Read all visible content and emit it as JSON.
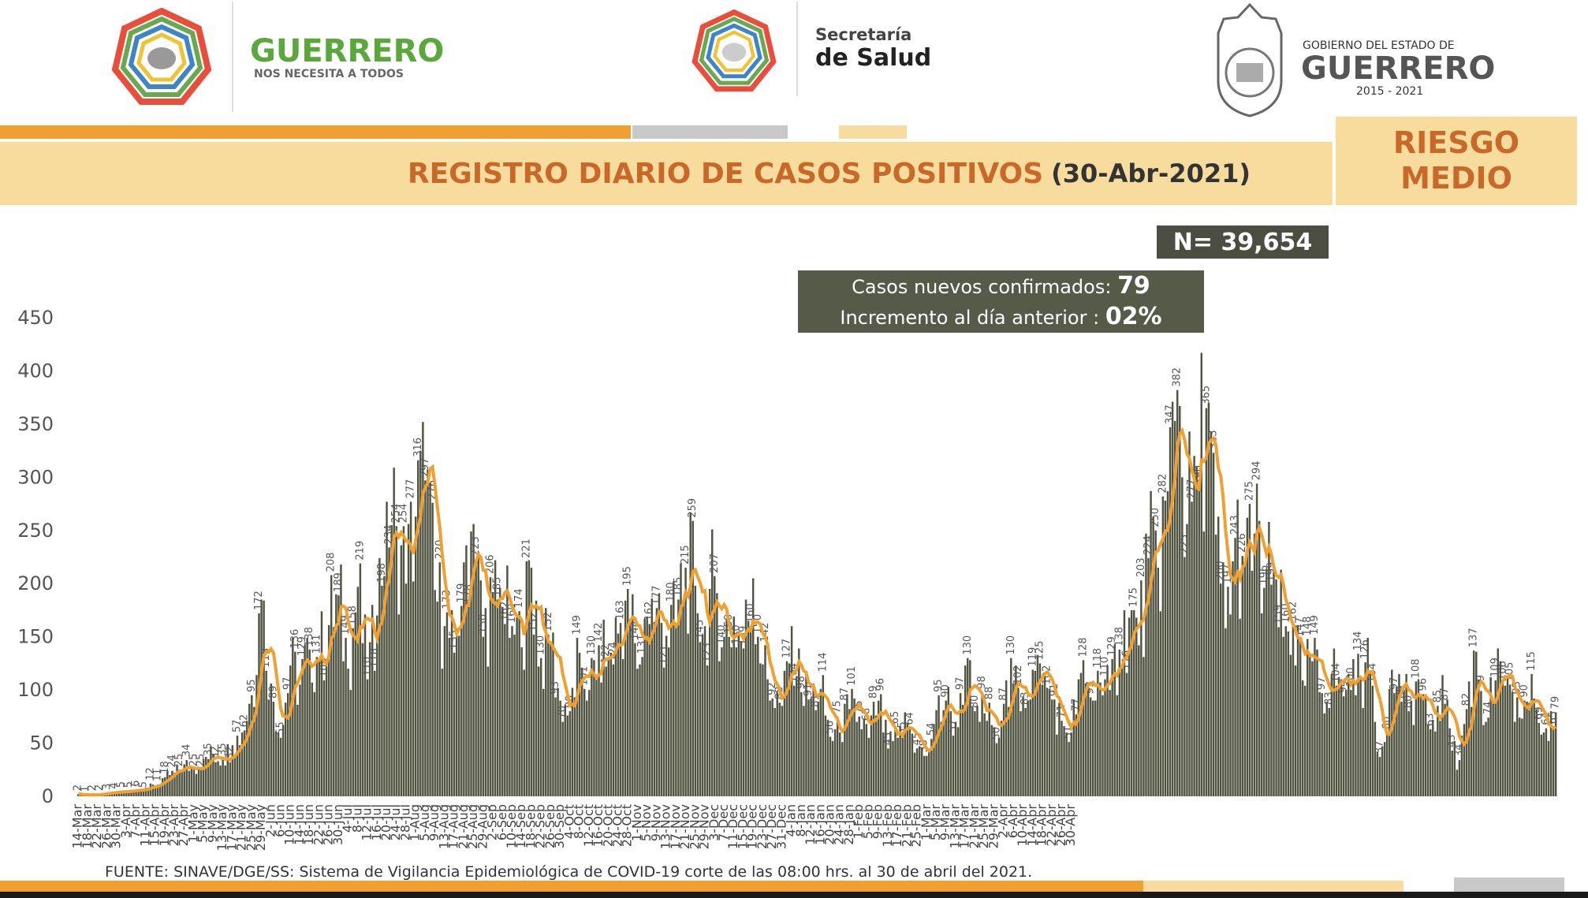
{
  "header": {
    "logo1_title": "GUERRERO",
    "logo1_subtitle": "NOS NECESITA A TODOS",
    "logo2_line1": "Secretaría",
    "logo2_line2": "de Salud",
    "logo3_line1": "GOBIERNO DEL ESTADO DE",
    "logo3_line2": "GUERRERO",
    "logo3_line3": "2015 - 2021",
    "title": "REGISTRO DIARIO DE CASOS POSITIVOS",
    "date": "(30-Abr-2021)",
    "risk_line1": "RIESGO",
    "risk_line2": "MEDIO"
  },
  "stats": {
    "total": "N= 39,654",
    "new_cases_label": "Casos nuevos confirmados:",
    "new_cases_value": "79",
    "increment_label": "Incremento al día anterior :",
    "increment_value": "02%"
  },
  "source": "FUENTE: SINAVE/DGE/SS: Sistema de Vigilancia Epidemiológica de COVID-19 corte de las 08:00 hrs. al 30 de abril del 2021.",
  "colors": {
    "bar": "#4f5340",
    "line": "#f0a030",
    "accent": "#c8692a",
    "band": "#f7dc9e"
  },
  "chart_data": {
    "type": "bar",
    "title": "REGISTRO DIARIO DE CASOS POSITIVOS",
    "ylim": [
      0,
      450
    ],
    "yticks": [
      0,
      50,
      100,
      150,
      200,
      250,
      300,
      350,
      400,
      450
    ],
    "start_date": "2020-03-14",
    "x_tick_labels": [
      "14-Mar",
      "18-Mar",
      "22-Mar",
      "26-Mar",
      "30-Mar",
      "3-Apr",
      "7-Apr",
      "11-Apr",
      "15-Apr",
      "19-Apr",
      "23-Apr",
      "27-Apr",
      "1-May",
      "5-May",
      "9-May",
      "13-May",
      "17-May",
      "21-May",
      "25-May",
      "29-May",
      "2-Jun",
      "6-Jun",
      "10-Jun",
      "14-Jun",
      "18-Jun",
      "22-Jun",
      "26-Jun",
      "30-Jun",
      "4-Jul",
      "8-Jul",
      "12-Jul",
      "16-Jul",
      "20-Jul",
      "24-Jul",
      "28-Jul",
      "1-Aug",
      "5-Aug",
      "9-Aug",
      "13-Aug",
      "17-Aug",
      "21-Aug",
      "25-Aug",
      "29-Aug",
      "2-Sep",
      "6-Sep",
      "10-Sep",
      "14-Sep",
      "18-Sep",
      "22-Sep",
      "26-Sep",
      "30-Sep",
      "4-Oct",
      "8-Oct",
      "12-Oct",
      "16-Oct",
      "20-Oct",
      "24-Oct",
      "28-Oct",
      "1-Nov",
      "5-Nov",
      "9-Nov",
      "13-Nov",
      "17-Nov",
      "21-Nov",
      "25-Nov",
      "29-Nov",
      "3-Dec",
      "7-Dec",
      "11-Dec",
      "15-Dec",
      "19-Dec",
      "23-Dec",
      "27-Dec",
      "31-Dec",
      "4-Jan",
      "8-Jan",
      "12-Jan",
      "16-Jan",
      "20-Jan",
      "24-Jan",
      "28-Jan",
      "1-Feb",
      "5-Feb",
      "9-Feb",
      "13-Feb",
      "17-Feb",
      "21-Feb",
      "25-Feb",
      "1-Mar",
      "5-Mar",
      "9-Mar",
      "13-Mar",
      "17-Mar",
      "21-Mar",
      "25-Mar",
      "29-Mar",
      "2-Apr",
      "6-Apr",
      "10-Apr",
      "14-Apr",
      "18-Apr",
      "22-Apr",
      "26-Apr",
      "30-Apr"
    ],
    "anchors": [
      [
        0,
        2
      ],
      [
        4,
        1
      ],
      [
        8,
        2
      ],
      [
        12,
        3
      ],
      [
        16,
        4
      ],
      [
        20,
        5
      ],
      [
        24,
        6
      ],
      [
        28,
        8
      ],
      [
        32,
        10
      ],
      [
        36,
        18
      ],
      [
        40,
        22
      ],
      [
        44,
        30
      ],
      [
        48,
        25
      ],
      [
        52,
        35
      ],
      [
        56,
        40
      ],
      [
        60,
        35
      ],
      [
        64,
        48
      ],
      [
        68,
        60
      ],
      [
        72,
        95
      ],
      [
        76,
        185
      ],
      [
        80,
        106
      ],
      [
        84,
        55
      ],
      [
        88,
        123
      ],
      [
        92,
        105
      ],
      [
        96,
        138
      ],
      [
        100,
        130
      ],
      [
        104,
        161
      ],
      [
        108,
        189
      ],
      [
        112,
        120
      ],
      [
        116,
        197
      ],
      [
        120,
        110
      ],
      [
        124,
        170
      ],
      [
        128,
        277
      ],
      [
        132,
        254
      ],
      [
        136,
        200
      ],
      [
        140,
        263
      ],
      [
        144,
        297
      ],
      [
        148,
        194
      ],
      [
        152,
        160
      ],
      [
        156,
        135
      ],
      [
        160,
        220
      ],
      [
        164,
        256
      ],
      [
        168,
        150
      ],
      [
        172,
        192
      ],
      [
        176,
        178
      ],
      [
        180,
        160
      ],
      [
        184,
        140
      ],
      [
        188,
        215
      ],
      [
        192,
        130
      ],
      [
        196,
        145
      ],
      [
        200,
        90
      ],
      [
        204,
        80
      ],
      [
        208,
        135
      ],
      [
        212,
        100
      ],
      [
        216,
        142
      ],
      [
        220,
        130
      ],
      [
        224,
        153
      ],
      [
        228,
        195
      ],
      [
        232,
        120
      ],
      [
        236,
        169
      ],
      [
        240,
        177
      ],
      [
        244,
        151
      ],
      [
        248,
        163
      ],
      [
        252,
        215
      ],
      [
        256,
        198
      ],
      [
        260,
        160
      ],
      [
        264,
        207
      ],
      [
        268,
        150
      ],
      [
        272,
        169
      ],
      [
        276,
        139
      ],
      [
        280,
        205
      ],
      [
        284,
        124
      ],
      [
        288,
        92
      ],
      [
        292,
        85
      ],
      [
        296,
        160
      ],
      [
        300,
        98
      ],
      [
        304,
        92
      ],
      [
        308,
        101
      ],
      [
        312,
        56
      ],
      [
        316,
        60
      ],
      [
        320,
        82
      ],
      [
        324,
        75
      ],
      [
        328,
        55
      ],
      [
        332,
        90
      ],
      [
        336,
        45
      ],
      [
        340,
        55
      ],
      [
        344,
        69
      ],
      [
        348,
        45
      ],
      [
        352,
        38
      ],
      [
        356,
        81
      ],
      [
        360,
        90
      ],
      [
        364,
        70
      ],
      [
        368,
        123
      ],
      [
        372,
        80
      ],
      [
        376,
        78
      ],
      [
        380,
        65
      ],
      [
        384,
        87
      ],
      [
        388,
        106
      ],
      [
        392,
        94
      ],
      [
        396,
        119
      ],
      [
        400,
        105
      ],
      [
        404,
        91
      ],
      [
        408,
        71
      ],
      [
        412,
        60
      ],
      [
        416,
        116
      ],
      [
        420,
        93
      ],
      [
        424,
        107
      ],
      [
        428,
        100
      ],
      [
        432,
        138
      ],
      [
        436,
        168
      ],
      [
        440,
        142
      ],
      [
        444,
        224
      ],
      [
        448,
        215
      ],
      [
        452,
        287
      ],
      [
        456,
        382
      ],
      [
        460,
        256
      ],
      [
        464,
        310
      ],
      [
        468,
        365
      ],
      [
        472,
        246
      ],
      [
        476,
        158
      ],
      [
        480,
        243
      ],
      [
        484,
        220
      ],
      [
        488,
        247
      ],
      [
        492,
        196
      ],
      [
        496,
        211
      ],
      [
        500,
        150
      ],
      [
        504,
        162
      ],
      [
        508,
        109
      ],
      [
        512,
        127
      ],
      [
        516,
        97
      ],
      [
        520,
        115
      ],
      [
        524,
        110
      ],
      [
        528,
        100
      ],
      [
        532,
        110
      ],
      [
        536,
        117
      ],
      [
        540,
        37
      ],
      [
        544,
        101
      ],
      [
        548,
        115
      ],
      [
        552,
        80
      ],
      [
        556,
        110
      ],
      [
        560,
        67
      ],
      [
        564,
        85
      ],
      [
        568,
        91
      ],
      [
        572,
        25
      ],
      [
        576,
        82
      ],
      [
        580,
        136
      ],
      [
        584,
        70
      ],
      [
        588,
        109
      ],
      [
        592,
        104
      ],
      [
        596,
        70
      ],
      [
        600,
        90
      ],
      [
        604,
        92
      ],
      [
        608,
        60
      ],
      [
        612,
        65
      ],
      [
        613,
        79
      ]
    ],
    "daily_values": [],
    "moving_average": []
  }
}
